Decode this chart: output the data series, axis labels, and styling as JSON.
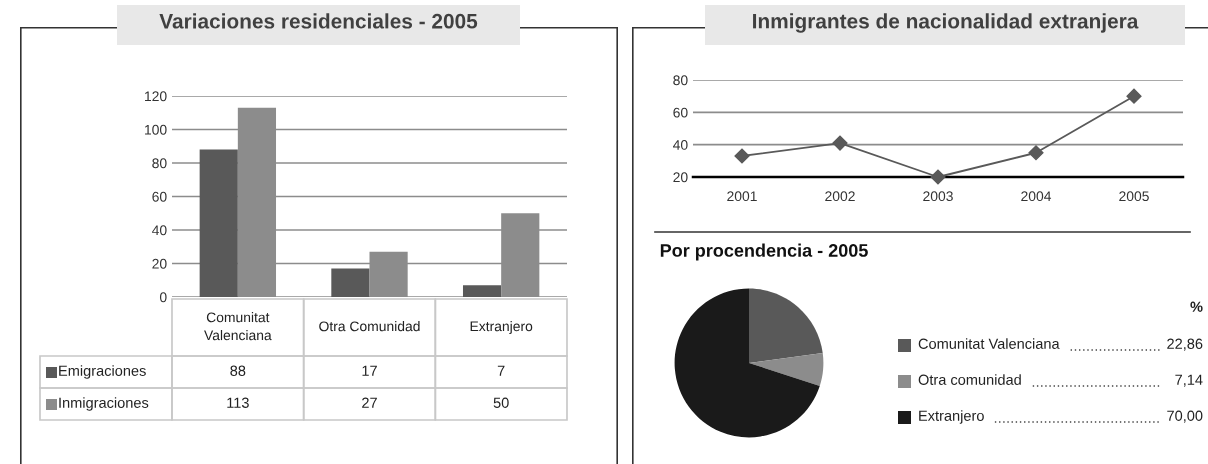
{
  "chart_data": [
    {
      "type": "bar",
      "title": "Variaciones residenciales - 2005",
      "categories": [
        "Comunitat\nValenciana",
        "Otra Comunidad",
        "Extranjero"
      ],
      "series": [
        {
          "name": "Emigraciones",
          "color": "#595959",
          "values": [
            88,
            17,
            7
          ]
        },
        {
          "name": "Inmigraciones",
          "color": "#8c8c8c",
          "values": [
            113,
            27,
            50
          ]
        }
      ],
      "ylim": [
        0,
        120
      ],
      "yticks": [
        0,
        20,
        40,
        60,
        80,
        100,
        120
      ],
      "grid": "y",
      "data_labels": true,
      "legend": "bottom left"
    },
    {
      "type": "line",
      "title": "Inmigrantes de nacionalidad extranjera",
      "categories": [
        "2001",
        "2002",
        "2003",
        "2004",
        "2005"
      ],
      "series": [
        {
          "color": "#595959",
          "values": [
            33,
            41,
            20,
            35,
            70
          ]
        }
      ],
      "ylim": [
        20,
        80
      ],
      "yticks": [
        20,
        40,
        60,
        80
      ],
      "grid": "y",
      "marker": "diamond"
    },
    {
      "type": "pie",
      "title": "Por procendencia - 2005",
      "categories": [
        "Comunitat Valenciana",
        "Otra comunidad",
        "Extranjero"
      ],
      "values": [
        22.86,
        7.14,
        70.0
      ],
      "colors": [
        "#595959",
        "#8c8c8c",
        "#1a1a1a"
      ],
      "value_labels": [
        "22,86",
        "7,14",
        "70,00"
      ],
      "legend": "right",
      "legend_title": "%"
    }
  ]
}
